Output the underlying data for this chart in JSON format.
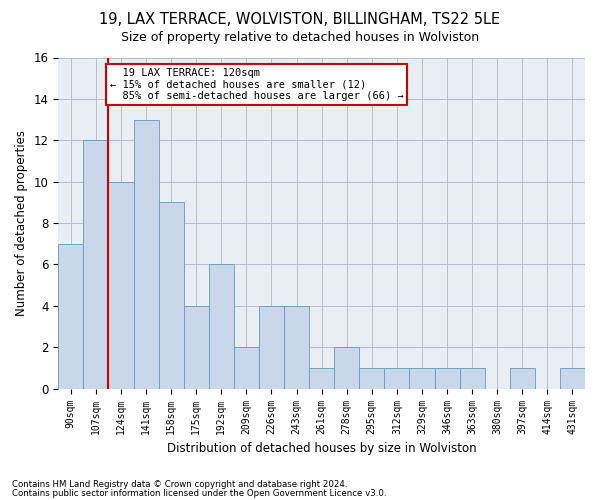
{
  "title1": "19, LAX TERRACE, WOLVISTON, BILLINGHAM, TS22 5LE",
  "title2": "Size of property relative to detached houses in Wolviston",
  "xlabel": "Distribution of detached houses by size in Wolviston",
  "ylabel": "Number of detached properties",
  "categories": [
    "90sqm",
    "107sqm",
    "124sqm",
    "141sqm",
    "158sqm",
    "175sqm",
    "192sqm",
    "209sqm",
    "226sqm",
    "243sqm",
    "261sqm",
    "278sqm",
    "295sqm",
    "312sqm",
    "329sqm",
    "346sqm",
    "363sqm",
    "380sqm",
    "397sqm",
    "414sqm",
    "431sqm"
  ],
  "values": [
    7,
    12,
    10,
    13,
    9,
    4,
    6,
    2,
    4,
    4,
    1,
    2,
    1,
    1,
    1,
    1,
    1,
    0,
    1,
    0,
    1
  ],
  "bar_color": "#c8d8ea",
  "bar_edge_color": "#6699bb",
  "grid_color": "#bbbbcc",
  "annotation_text": "  19 LAX TERRACE: 120sqm\n← 15% of detached houses are smaller (12)\n  85% of semi-detached houses are larger (66) →",
  "annotation_box_color": "#ffffff",
  "annotation_box_edge": "#cc0000",
  "redline_color": "#cc0000",
  "ylim": [
    0,
    16
  ],
  "yticks": [
    0,
    2,
    4,
    6,
    8,
    10,
    12,
    14,
    16
  ],
  "footnote1": "Contains HM Land Registry data © Crown copyright and database right 2024.",
  "footnote2": "Contains public sector information licensed under the Open Government Licence v3.0.",
  "bg_color": "#e8eef4"
}
